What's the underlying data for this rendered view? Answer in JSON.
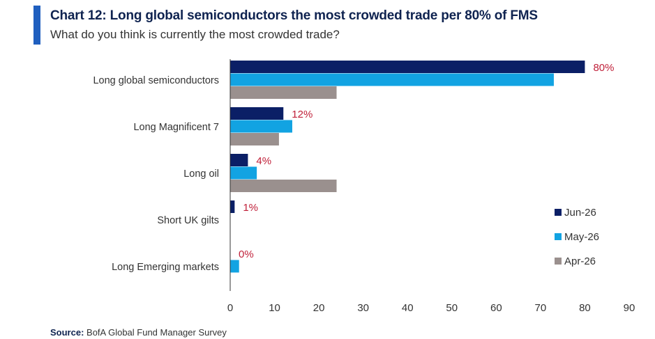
{
  "title": "Chart 12: Long global semiconductors the most crowded trade per 80% of FMS",
  "subtitle": "What do you think is currently the most crowded trade?",
  "source_prefix": "Source:",
  "source_text": " BofA Global Fund Manager Survey",
  "colors": {
    "accent": "#1f5fbf",
    "label": "#c0213a"
  },
  "chart_data": {
    "type": "bar",
    "orientation": "horizontal",
    "categories": [
      "Long global semiconductors",
      "Long Magnificent 7",
      "Long oil",
      "Short UK gilts",
      "Long Emerging markets"
    ],
    "series": [
      {
        "name": "Jun-26",
        "color": "#0b1f66",
        "values": [
          80,
          12,
          4,
          1,
          0
        ]
      },
      {
        "name": "May-26",
        "color": "#12a3e2",
        "values": [
          73,
          14,
          6,
          0,
          2
        ]
      },
      {
        "name": "Apr-26",
        "color": "#9a908e",
        "values": [
          24,
          11,
          24,
          0,
          0
        ]
      }
    ],
    "data_labels": [
      "80%",
      "12%",
      "4%",
      "1%",
      "0%"
    ],
    "xlim": [
      0,
      90
    ],
    "xticks": [
      0,
      10,
      20,
      30,
      40,
      50,
      60,
      70,
      80,
      90
    ],
    "legend_position": "right",
    "grid": false
  }
}
